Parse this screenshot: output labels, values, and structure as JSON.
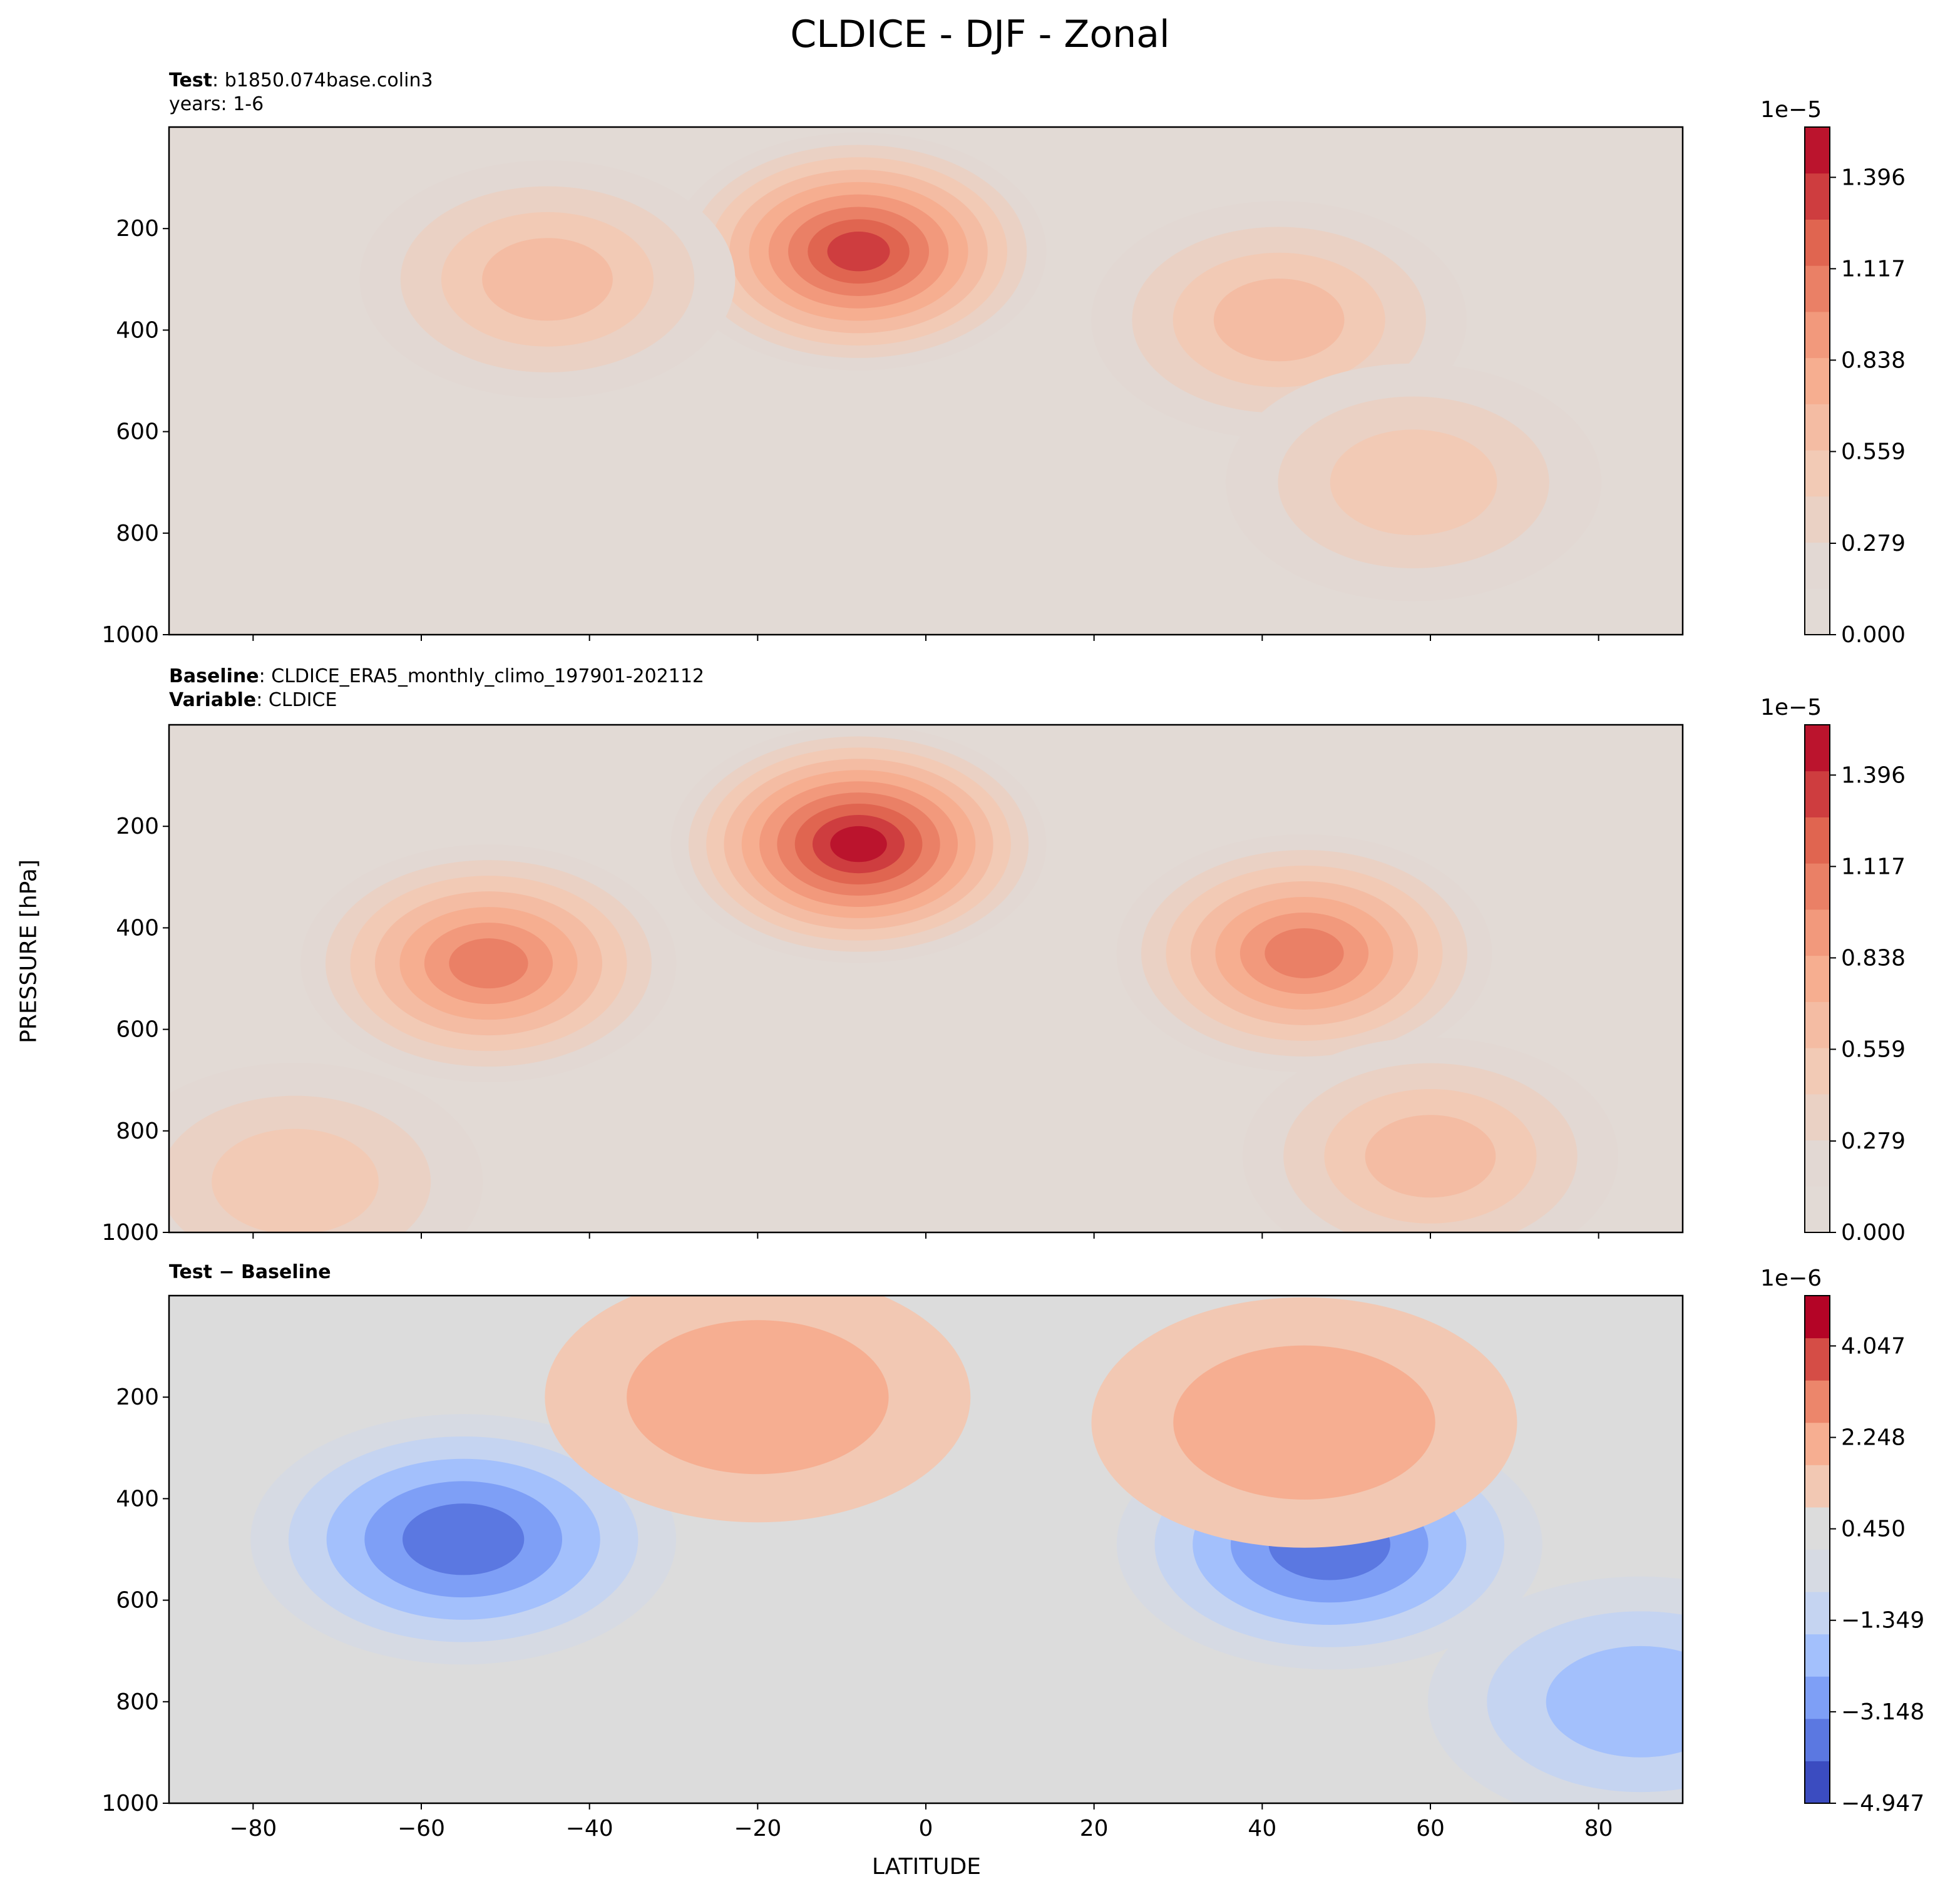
{
  "figure": {
    "title": "CLDICE - DJF - Zonal",
    "ylabel": "PRESSURE [hPa]",
    "xlabel": "LATITUDE"
  },
  "panels": [
    {
      "label_lines": [
        {
          "bold": "Test",
          "text": "b1850.074base.colin3"
        },
        {
          "bold": "",
          "text": "years: 1-6"
        }
      ],
      "colorbar_exponent": "1e−5",
      "colorbar_ticks": [
        "0.000",
        "0.279",
        "0.559",
        "0.838",
        "1.117",
        "1.396"
      ]
    },
    {
      "label_lines": [
        {
          "bold": "Baseline",
          "text": "CLDICE_ERA5_monthly_climo_197901-202112"
        },
        {
          "bold": "Variable",
          "text": "CLDICE"
        }
      ],
      "colorbar_exponent": "1e−5",
      "colorbar_ticks": [
        "0.000",
        "0.279",
        "0.559",
        "0.838",
        "1.117",
        "1.396"
      ]
    },
    {
      "label_lines": [
        {
          "bold": "Test − Baseline",
          "text": ""
        }
      ],
      "colorbar_exponent": "1e−6",
      "colorbar_ticks": [
        "−4.947",
        "−3.148",
        "−1.349",
        "0.450",
        "2.248",
        "4.047"
      ]
    }
  ],
  "chart_data": [
    {
      "type": "contourf",
      "title": "Test: b1850.074base.colin3 (years: 1-6)",
      "xlabel": "LATITUDE",
      "ylabel": "PRESSURE [hPa]",
      "xlim": [
        -90,
        90
      ],
      "ylim": [
        1000,
        0
      ],
      "x_ticks": [
        -80,
        -60,
        -40,
        -20,
        0,
        20,
        40,
        60,
        80
      ],
      "y_ticks": [
        200,
        400,
        600,
        800,
        1000
      ],
      "colormap": "coolwarm",
      "levels": [
        0.0,
        0.279,
        0.559,
        0.838,
        1.117,
        1.396
      ],
      "units_scale": "1e-5",
      "features": [
        {
          "lat": -8,
          "p": 245,
          "value": 1.25,
          "note": "upper-tropospheric tropical maximum"
        },
        {
          "lat": -45,
          "p": 300,
          "value": 0.45
        },
        {
          "lat": 42,
          "p": 380,
          "value": 0.55,
          "note": "NH midlatitude maximum"
        },
        {
          "lat": 58,
          "p": 700,
          "value": 0.4
        }
      ]
    },
    {
      "type": "contourf",
      "title": "Baseline: CLDICE_ERA5_monthly_climo_197901-202112 (Variable: CLDICE)",
      "xlabel": "LATITUDE",
      "ylabel": "PRESSURE [hPa]",
      "xlim": [
        -90,
        90
      ],
      "ylim": [
        1000,
        0
      ],
      "x_ticks": [
        -80,
        -60,
        -40,
        -20,
        0,
        20,
        40,
        60,
        80
      ],
      "y_ticks": [
        200,
        400,
        600,
        800,
        1000
      ],
      "colormap": "coolwarm",
      "levels": [
        0.0,
        0.279,
        0.559,
        0.838,
        1.117,
        1.396
      ],
      "units_scale": "1e-5",
      "features": [
        {
          "lat": -8,
          "p": 235,
          "value": 1.45,
          "note": "upper-tropospheric tropical maximum"
        },
        {
          "lat": -52,
          "p": 470,
          "value": 0.85,
          "note": "SH midlatitude maximum"
        },
        {
          "lat": 45,
          "p": 450,
          "value": 0.9,
          "note": "NH midlatitude maximum"
        },
        {
          "lat": -75,
          "p": 900,
          "value": 0.4
        },
        {
          "lat": 60,
          "p": 850,
          "value": 0.45
        }
      ]
    },
    {
      "type": "contourf",
      "title": "Test − Baseline",
      "xlabel": "LATITUDE",
      "ylabel": "PRESSURE [hPa]",
      "xlim": [
        -90,
        90
      ],
      "ylim": [
        1000,
        0
      ],
      "x_ticks": [
        -80,
        -60,
        -40,
        -20,
        0,
        20,
        40,
        60,
        80
      ],
      "y_ticks": [
        200,
        400,
        600,
        800,
        1000
      ],
      "colormap": "coolwarm",
      "levels": [
        -4.947,
        -3.148,
        -1.349,
        0.45,
        2.248,
        4.047
      ],
      "units_scale": "1e-6",
      "features": [
        {
          "lat": -55,
          "p": 480,
          "value": -4.8,
          "note": "SH midlatitude minimum"
        },
        {
          "lat": 48,
          "p": 490,
          "value": -4.2,
          "note": "NH midlatitude minimum"
        },
        {
          "lat": -20,
          "p": 200,
          "value": 2.0,
          "note": "positive upper-level"
        },
        {
          "lat": 45,
          "p": 250,
          "value": 1.8
        },
        {
          "lat": 85,
          "p": 800,
          "value": -2.5
        }
      ]
    }
  ]
}
